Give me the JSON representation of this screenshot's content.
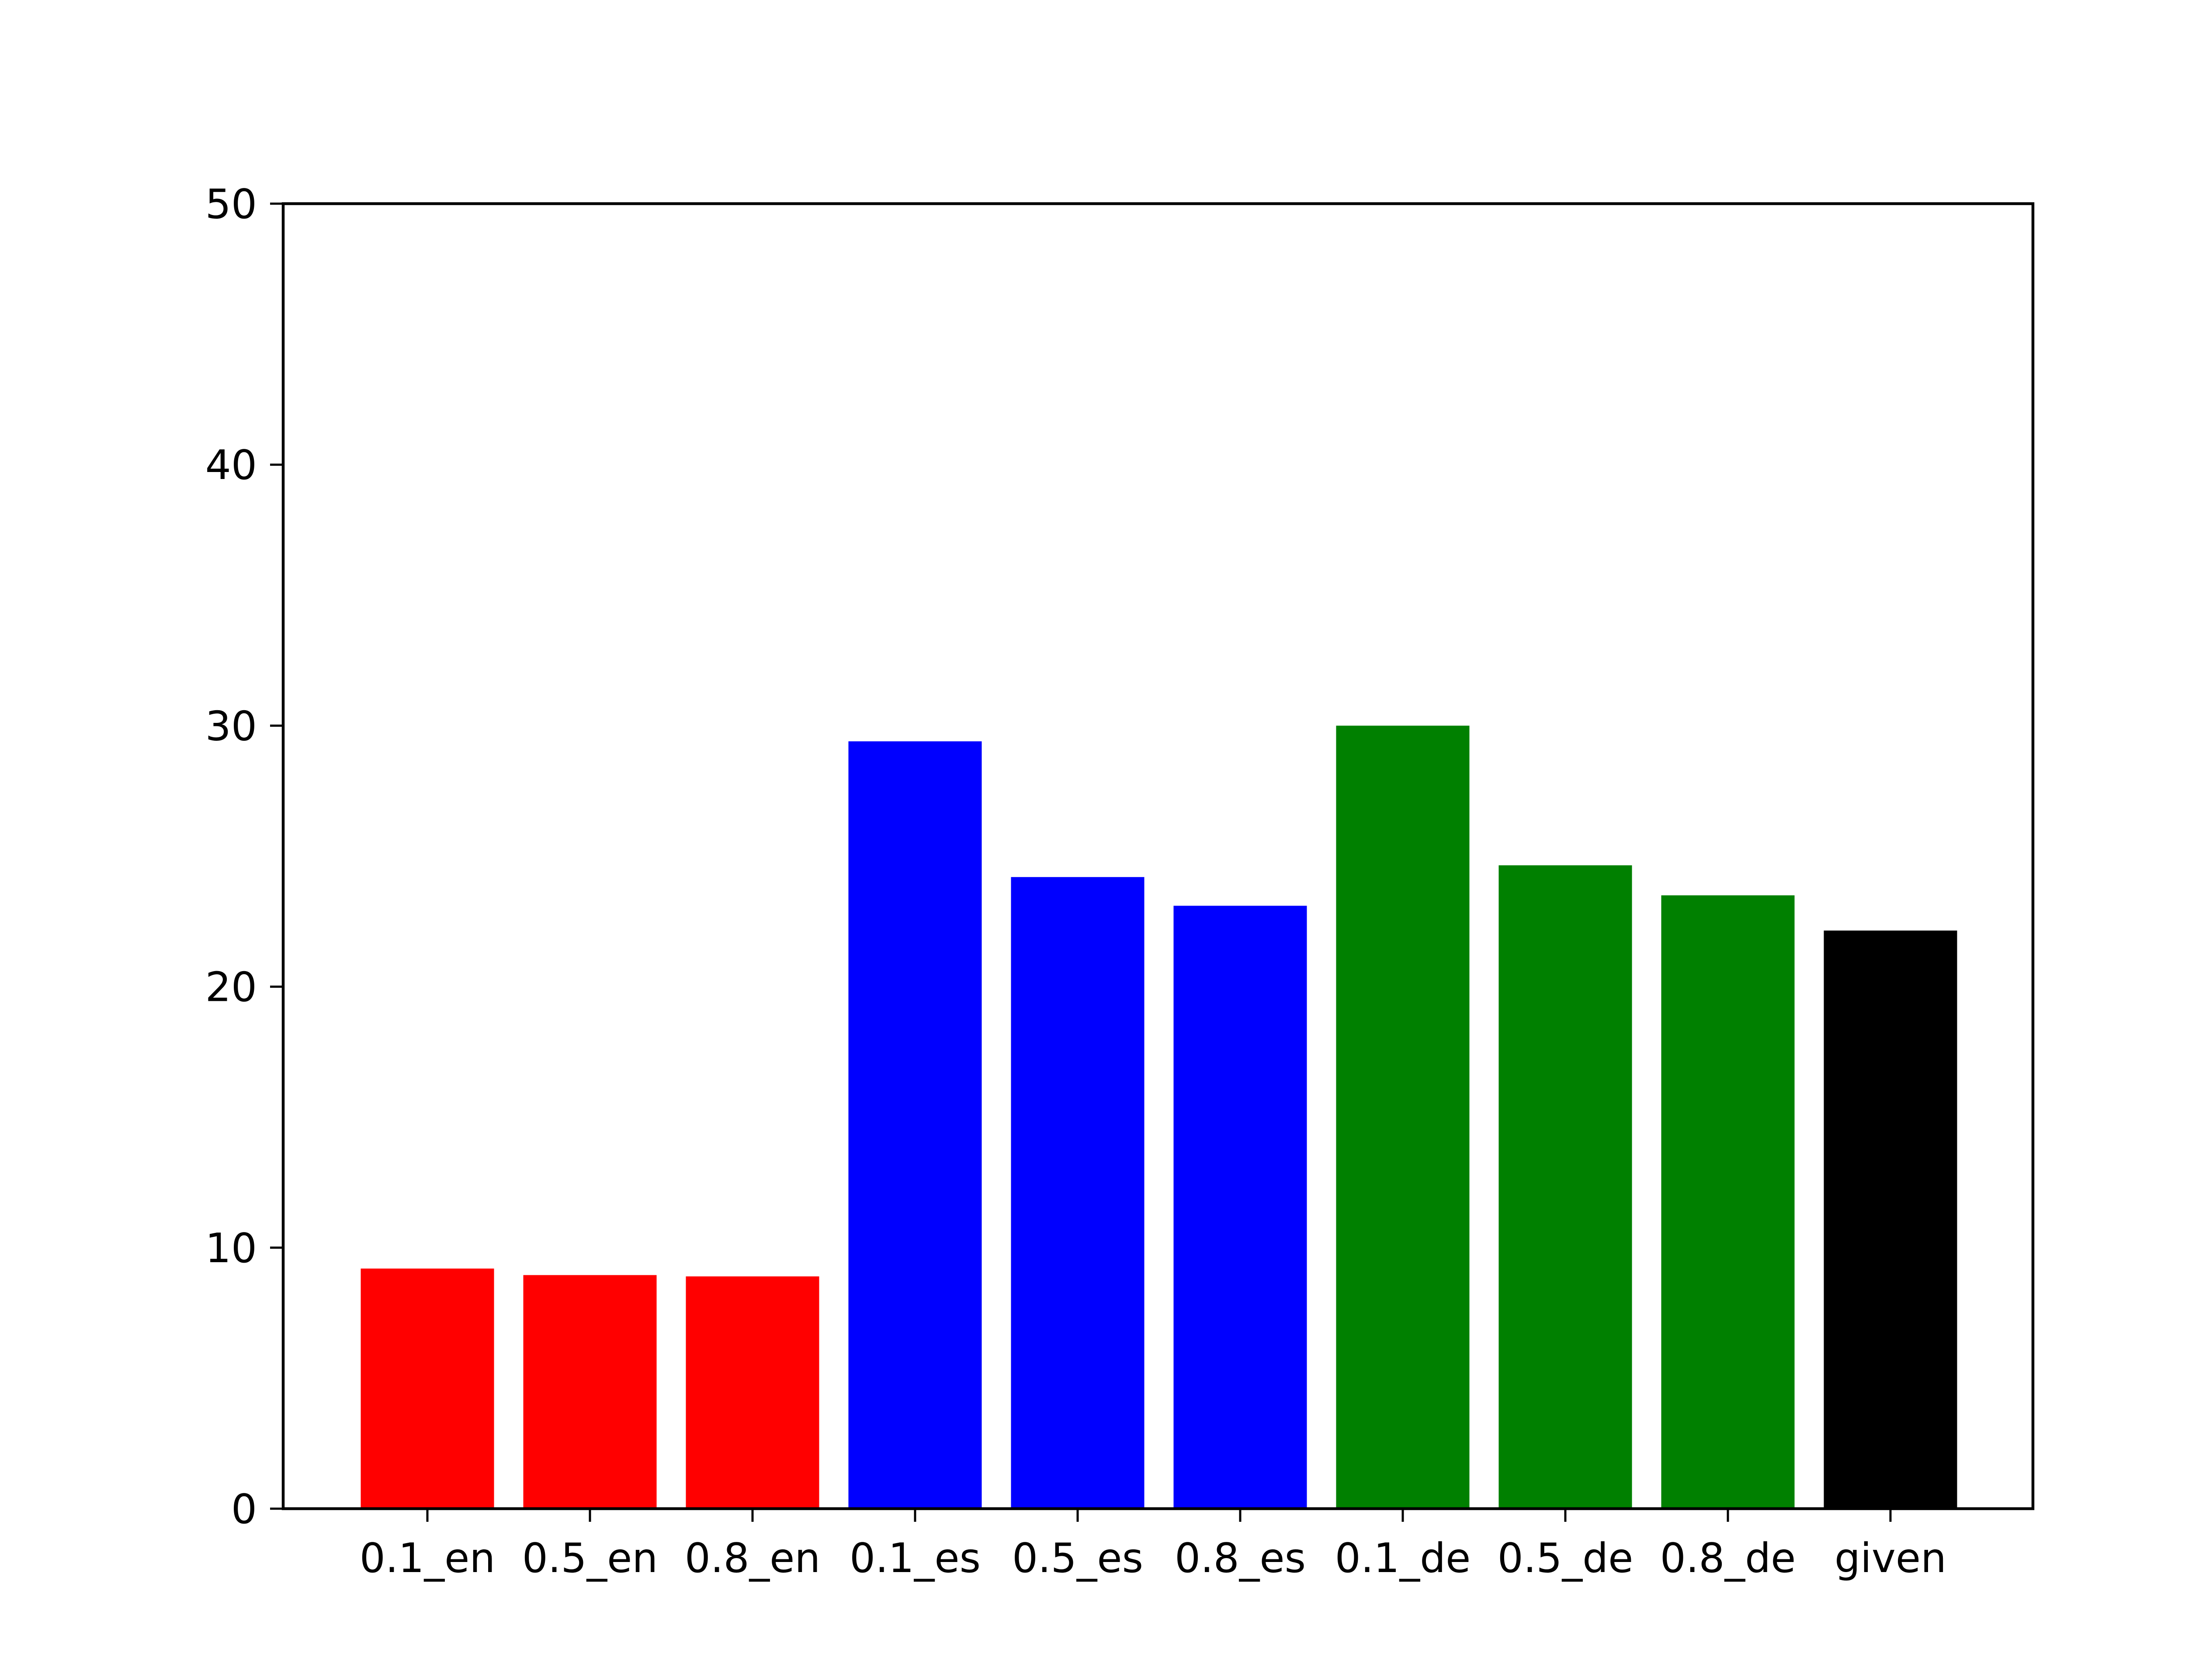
{
  "chart_data": {
    "type": "bar",
    "title": "",
    "xlabel": "",
    "ylabel": "",
    "categories": [
      "0.1_en",
      "0.5_en",
      "0.8_en",
      "0.1_es",
      "0.5_es",
      "0.8_es",
      "0.1_de",
      "0.5_de",
      "0.8_de",
      "given"
    ],
    "values": [
      9.2,
      8.95,
      8.9,
      29.4,
      24.2,
      23.1,
      30.0,
      24.65,
      23.5,
      22.15
    ],
    "bar_colors": [
      "#ff0000",
      "#ff0000",
      "#ff0000",
      "#0000ff",
      "#0000ff",
      "#0000ff",
      "#008000",
      "#008000",
      "#008000",
      "#000000"
    ],
    "ylim": [
      0,
      50
    ],
    "yticks": [
      0,
      10,
      20,
      30,
      40,
      50
    ],
    "grid": false,
    "legend": null
  }
}
